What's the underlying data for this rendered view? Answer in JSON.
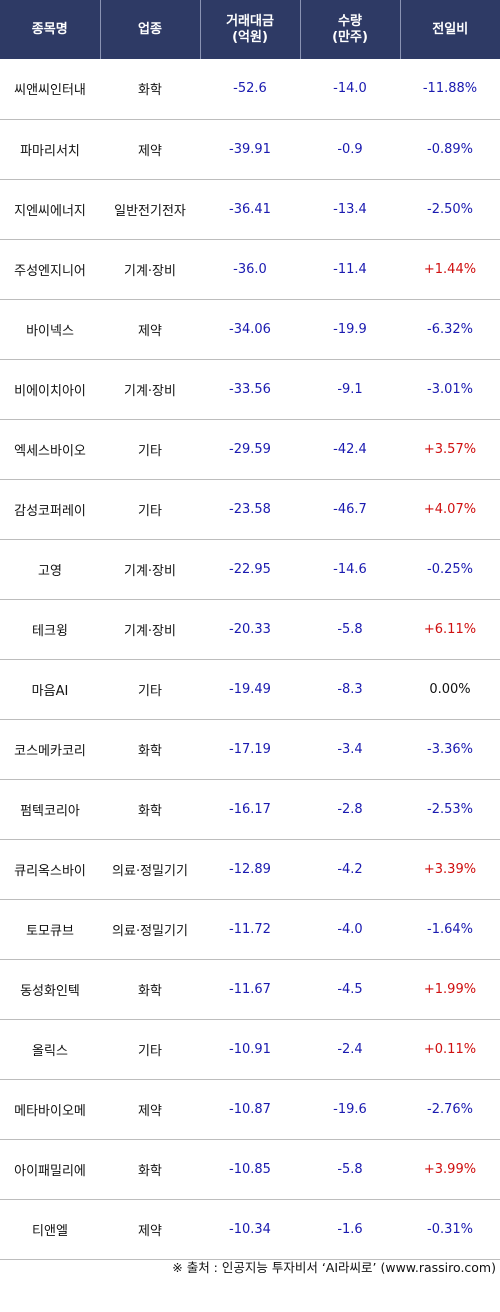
{
  "header": {
    "col_name": "종목명",
    "col_sector": "업종",
    "col_value_line1": "거래대금",
    "col_value_line2": "(억원)",
    "col_volume_line1": "수량",
    "col_volume_line2": "(만주)",
    "col_change": "전일비"
  },
  "rows": [
    {
      "name": "씨앤씨인터내",
      "sector": "화학",
      "value": "-52.6",
      "volume": "-14.0",
      "change": "-11.88%",
      "dir": "neg"
    },
    {
      "name": "파마리서치",
      "sector": "제약",
      "value": "-39.91",
      "volume": "-0.9",
      "change": "-0.89%",
      "dir": "neg"
    },
    {
      "name": "지엔씨에너지",
      "sector": "일반전기전자",
      "value": "-36.41",
      "volume": "-13.4",
      "change": "-2.50%",
      "dir": "neg"
    },
    {
      "name": "주성엔지니어",
      "sector": "기계·장비",
      "value": "-36.0",
      "volume": "-11.4",
      "change": "+1.44%",
      "dir": "pos"
    },
    {
      "name": "바이넥스",
      "sector": "제약",
      "value": "-34.06",
      "volume": "-19.9",
      "change": "-6.32%",
      "dir": "neg"
    },
    {
      "name": "비에이치아이",
      "sector": "기계·장비",
      "value": "-33.56",
      "volume": "-9.1",
      "change": "-3.01%",
      "dir": "neg"
    },
    {
      "name": "엑세스바이오",
      "sector": "기타",
      "value": "-29.59",
      "volume": "-42.4",
      "change": "+3.57%",
      "dir": "pos"
    },
    {
      "name": "감성코퍼레이",
      "sector": "기타",
      "value": "-23.58",
      "volume": "-46.7",
      "change": "+4.07%",
      "dir": "pos"
    },
    {
      "name": "고영",
      "sector": "기계·장비",
      "value": "-22.95",
      "volume": "-14.6",
      "change": "-0.25%",
      "dir": "neg"
    },
    {
      "name": "테크윙",
      "sector": "기계·장비",
      "value": "-20.33",
      "volume": "-5.8",
      "change": "+6.11%",
      "dir": "pos"
    },
    {
      "name": "마음AI",
      "sector": "기타",
      "value": "-19.49",
      "volume": "-8.3",
      "change": "0.00%",
      "dir": "zero"
    },
    {
      "name": "코스메카코리",
      "sector": "화학",
      "value": "-17.19",
      "volume": "-3.4",
      "change": "-3.36%",
      "dir": "neg"
    },
    {
      "name": "펌텍코리아",
      "sector": "화학",
      "value": "-16.17",
      "volume": "-2.8",
      "change": "-2.53%",
      "dir": "neg"
    },
    {
      "name": "큐리옥스바이",
      "sector": "의료·정밀기기",
      "value": "-12.89",
      "volume": "-4.2",
      "change": "+3.39%",
      "dir": "pos"
    },
    {
      "name": "토모큐브",
      "sector": "의료·정밀기기",
      "value": "-11.72",
      "volume": "-4.0",
      "change": "-1.64%",
      "dir": "neg"
    },
    {
      "name": "동성화인텍",
      "sector": "화학",
      "value": "-11.67",
      "volume": "-4.5",
      "change": "+1.99%",
      "dir": "pos"
    },
    {
      "name": "올릭스",
      "sector": "기타",
      "value": "-10.91",
      "volume": "-2.4",
      "change": "+0.11%",
      "dir": "pos"
    },
    {
      "name": "메타바이오메",
      "sector": "제약",
      "value": "-10.87",
      "volume": "-19.6",
      "change": "-2.76%",
      "dir": "neg"
    },
    {
      "name": "아이패밀리에",
      "sector": "화학",
      "value": "-10.85",
      "volume": "-5.8",
      "change": "+3.99%",
      "dir": "pos"
    },
    {
      "name": "티앤엘",
      "sector": "제약",
      "value": "-10.34",
      "volume": "-1.6",
      "change": "-0.31%",
      "dir": "neg"
    }
  ],
  "footer": {
    "source": "※ 출처 : 인공지능 투자비서 ‘AI라씨로’ (www.rassiro.com)"
  }
}
